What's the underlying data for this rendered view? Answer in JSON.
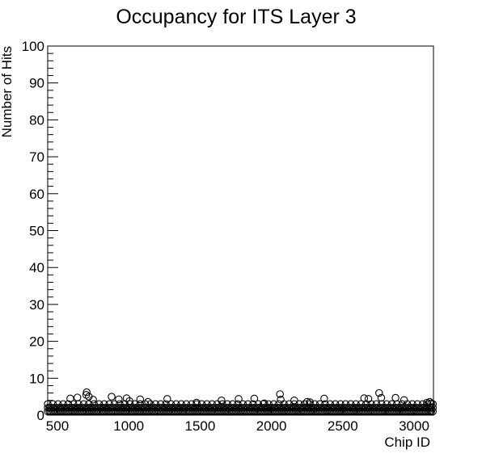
{
  "chart_data": {
    "type": "scatter",
    "title": "Occupancy for ITS Layer 3",
    "xlabel": "Chip ID",
    "ylabel": "Number of Hits",
    "xlim": [
      432,
      3136
    ],
    "ylim": [
      0,
      100
    ],
    "x_ticks": [
      500,
      1000,
      1500,
      2000,
      2500,
      3000
    ],
    "y_ticks": [
      0,
      10,
      20,
      30,
      40,
      50,
      60,
      70,
      80,
      90,
      100
    ],
    "marker": "open-circle",
    "marker_color": "#000000",
    "grid": false,
    "legend": "none",
    "x_range_populated": [
      432,
      3135
    ],
    "baseline_hits": [
      1,
      2,
      3
    ],
    "points": [
      [
        590,
        4.5
      ],
      [
        640,
        4.8
      ],
      [
        705,
        6.2
      ],
      [
        702,
        5.5
      ],
      [
        720,
        5.0
      ],
      [
        750,
        4.2
      ],
      [
        880,
        5.0
      ],
      [
        930,
        4.3
      ],
      [
        985,
        4.6
      ],
      [
        1005,
        3.8
      ],
      [
        1080,
        4.3
      ],
      [
        1135,
        3.6
      ],
      [
        1270,
        4.4
      ],
      [
        1475,
        3.4
      ],
      [
        1650,
        4.0
      ],
      [
        1770,
        4.4
      ],
      [
        1880,
        4.5
      ],
      [
        1950,
        3.2
      ],
      [
        2060,
        5.7
      ],
      [
        2065,
        4.2
      ],
      [
        2160,
        4.0
      ],
      [
        2250,
        3.6
      ],
      [
        2270,
        3.5
      ],
      [
        2370,
        4.5
      ],
      [
        2650,
        4.6
      ],
      [
        2680,
        4.4
      ],
      [
        2755,
        6.0
      ],
      [
        2770,
        4.7
      ],
      [
        2870,
        4.7
      ],
      [
        2930,
        4.1
      ],
      [
        3090,
        3.4
      ],
      [
        3110,
        3.6
      ],
      [
        3120,
        3.2
      ]
    ]
  }
}
